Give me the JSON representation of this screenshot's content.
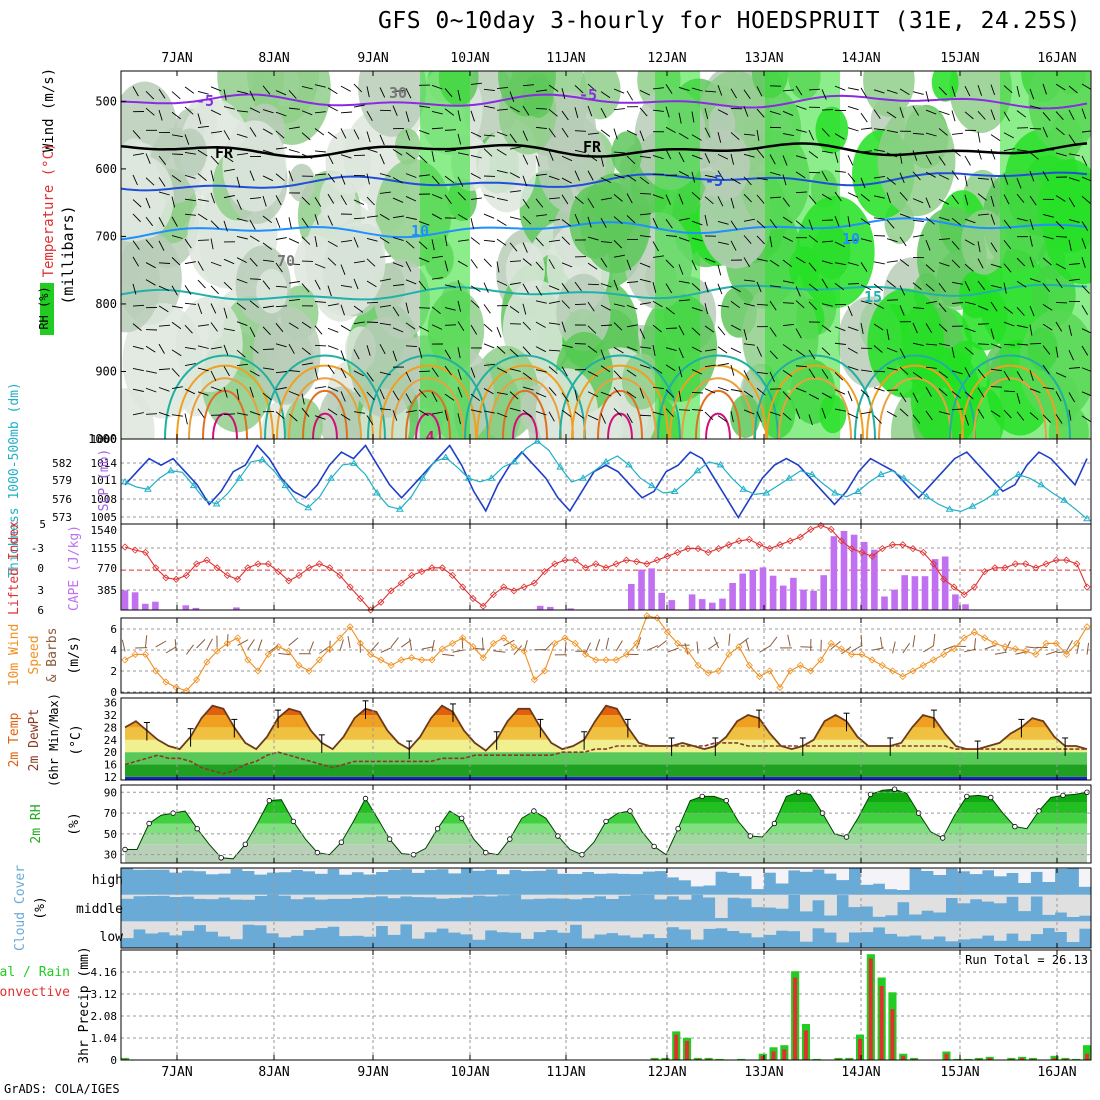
{
  "title": "GFS 0~10day 3-hourly for HOEDSPRUIT (31E, 24.25S)",
  "footer": "GrADS: COLA/IGES",
  "chart_data": [
    {
      "id": "upper-air",
      "type": "contour",
      "xlabels": [
        "7JAN",
        "8JAN",
        "9JAN",
        "10JAN",
        "11JAN",
        "12JAN",
        "13JAN",
        "14JAN",
        "15JAN",
        "16JAN"
      ],
      "ylabels": [
        "500",
        "600",
        "700",
        "800",
        "900",
        "1000"
      ],
      "ylabel": "(millibars)",
      "legend": {
        "rh": "RH (%)",
        "temp": "Temperature (°C)",
        "wind": "Wind (m/s)"
      },
      "contour_labels": [
        "-5",
        "-5",
        "FR",
        "FR",
        "-5",
        "10",
        "10",
        "15",
        "30",
        "70",
        "4"
      ],
      "isotherms": [
        {
          "name": "-5C",
          "color": "#8a2be2",
          "level": 500
        },
        {
          "name": "FR",
          "color": "#000000",
          "level": 572
        },
        {
          "name": "5C",
          "color": "#1f4fd8",
          "level": 625
        },
        {
          "name": "10C",
          "color": "#1e90ff",
          "level": 695
        },
        {
          "name": "15C",
          "color": "#20b2aa",
          "level": 790
        }
      ]
    },
    {
      "id": "thickness-slp",
      "type": "line",
      "ylabel_left": "Thickness 1000-500mb (dm)",
      "ylabel_right": "SLP (mb)",
      "left_ticks": [
        "582",
        "579",
        "576",
        "573"
      ],
      "right_ticks": [
        "1014",
        "1011",
        "1008",
        "1005"
      ],
      "series": [
        {
          "name": "SLP (mb)",
          "color": "#1f3fc8",
          "ylim": [
            1004,
            1017
          ],
          "values": [
            1010,
            1012,
            1014,
            1013,
            1014,
            1012,
            1010,
            1007,
            1009,
            1012,
            1013,
            1016,
            1014,
            1011,
            1009,
            1008,
            1010,
            1013,
            1015,
            1014,
            1016,
            1013,
            1010,
            1008,
            1010,
            1012,
            1014,
            1016,
            1013,
            1009,
            1006,
            1010,
            1013,
            1015,
            1013,
            1011,
            1008,
            1006,
            1009,
            1012,
            1013,
            1012,
            1010,
            1008,
            1009,
            1012,
            1013,
            1015,
            1014,
            1011,
            1008,
            1005,
            1008,
            1011,
            1013,
            1014,
            1013,
            1011,
            1009,
            1007,
            1009,
            1012,
            1014,
            1013,
            1012,
            1010,
            1008,
            1010,
            1012,
            1014,
            1015,
            1013,
            1011,
            1009,
            1010,
            1013,
            1015,
            1014,
            1012,
            1010,
            1014
          ]
        },
        {
          "name": "Thickness (dm)",
          "color": "#20b0c8",
          "ylim": [
            5728,
            5843
          ],
          "values": [
            5785,
            5778,
            5775,
            5790,
            5800,
            5798,
            5780,
            5760,
            5755,
            5770,
            5790,
            5812,
            5815,
            5800,
            5780,
            5758,
            5750,
            5765,
            5790,
            5808,
            5810,
            5795,
            5770,
            5752,
            5748,
            5765,
            5790,
            5812,
            5818,
            5805,
            5790,
            5785,
            5790,
            5805,
            5812,
            5830,
            5840,
            5828,
            5805,
            5785,
            5790,
            5800,
            5812,
            5820,
            5808,
            5790,
            5780,
            5770,
            5772,
            5785,
            5800,
            5812,
            5808,
            5790,
            5775,
            5768,
            5770,
            5780,
            5790,
            5800,
            5795,
            5782,
            5770,
            5765,
            5772,
            5785,
            5795,
            5800,
            5790,
            5778,
            5765,
            5755,
            5748,
            5745,
            5752,
            5760,
            5770,
            5785,
            5795,
            5790,
            5781,
            5770,
            5760,
            5748,
            5735
          ]
        }
      ]
    },
    {
      "id": "lifted-cape",
      "type": "line+bar",
      "ylabel_left": "Lifted Index",
      "ylabel_right": "CAPE (J/kg)",
      "left_ticks": [
        "-3",
        "0",
        "3",
        "6"
      ],
      "right_ticks": [
        "1540",
        "1155",
        "770",
        "385"
      ],
      "lifted_index": {
        "name": "Lifted Index",
        "color": "#e03030",
        "ylim": [
          6,
          -5.2
        ],
        "values": [
          -2.2,
          -1.8,
          -1.5,
          0.5,
          1.8,
          2.0,
          1.5,
          0,
          -0.5,
          0.5,
          1.5,
          2.0,
          0.5,
          0,
          0,
          1.0,
          2.2,
          1.5,
          0.5,
          0,
          0.5,
          1.5,
          3.0,
          4.5,
          6,
          5.0,
          3.5,
          2.5,
          1.5,
          1.0,
          0.5,
          0.5,
          1.5,
          3.0,
          4.5,
          5.5,
          4.0,
          3.0,
          3.5,
          3.0,
          2.5,
          1.0,
          0,
          -0.5,
          -0.5,
          0.5,
          0,
          0.5,
          0,
          -0.5,
          -0.3,
          0,
          -0.5,
          -1.0,
          -1.5,
          -2.0,
          -2.0,
          -1.5,
          -2.0,
          -2.5,
          -3.0,
          -3.2,
          -2.5,
          -2.0,
          -2.5,
          -3.0,
          -3.5,
          -4.5,
          -5.0,
          -4.5,
          -3.0,
          -2.0,
          -1.5,
          -1.0,
          -2.0,
          -2.5,
          -2.5,
          -2.0,
          -1.5,
          0,
          2.0,
          3.0,
          4.0,
          3.0,
          1.0,
          0.5,
          0.5,
          0,
          0,
          0.5,
          0,
          -0.5,
          -0.5,
          0,
          3.0
        ]
      },
      "cape": {
        "name": "CAPE (J/kg)",
        "color": "#c070f0",
        "ylim": [
          0,
          1540
        ],
        "values": [
          380,
          340,
          120,
          160,
          0,
          0,
          90,
          40,
          0,
          0,
          0,
          50,
          0,
          0,
          0,
          0,
          0,
          0,
          0,
          0,
          0,
          0,
          0,
          0,
          0,
          0,
          0,
          0,
          0,
          0,
          0,
          0,
          0,
          0,
          0,
          0,
          0,
          0,
          0,
          0,
          0,
          80,
          60,
          0,
          30,
          0,
          0,
          0,
          0,
          0,
          500,
          780,
          800,
          330,
          190,
          0,
          300,
          210,
          140,
          220,
          520,
          700,
          770,
          820,
          660,
          470,
          620,
          390,
          370,
          670,
          1420,
          1520,
          1450,
          1310,
          1160,
          260,
          390,
          670,
          650,
          650,
          980,
          1030,
          300,
          110,
          0,
          0,
          0,
          0,
          0,
          0,
          0,
          0,
          0,
          0,
          0,
          0
        ]
      }
    },
    {
      "id": "wind10m",
      "type": "line",
      "ylabel": "10m Wind Speed & Barbs (m/s)",
      "ticks": [
        "6",
        "4",
        "2",
        "0"
      ],
      "series": [
        {
          "name": "10m Wind Speed",
          "color": "#f09020",
          "ylim": [
            0,
            6.8
          ],
          "values": [
            3.0,
            3.5,
            3.5,
            2.0,
            1.0,
            0.5,
            0.2,
            1.2,
            2.8,
            3.8,
            4.5,
            5.0,
            3.0,
            2.0,
            3.5,
            4.2,
            3.8,
            2.5,
            2.0,
            3.0,
            4.0,
            5.0,
            6.0,
            4.5,
            3.5,
            3.0,
            2.5,
            3.0,
            3.2,
            3.0,
            3.0,
            4.0,
            4.5,
            5.0,
            4.2,
            3.2,
            4.5,
            5.0,
            4.2,
            3.8,
            1.2,
            2.0,
            4.5,
            5.0,
            4.5,
            3.5,
            3.0,
            3.0,
            3.0,
            3.5,
            4.5,
            7.0,
            6.8,
            5.5,
            4.5,
            3.8,
            2.5,
            1.8,
            2.0,
            3.5,
            4.2,
            2.5,
            1.5,
            2.0,
            0.5,
            2.0,
            2.5,
            2.0,
            3.0,
            4.5,
            4.0,
            3.5,
            3.5,
            3.0,
            2.5,
            2.0,
            1.5,
            2.0,
            2.5,
            3.0,
            3.5,
            4.0,
            5.0,
            5.5,
            5.0,
            4.5,
            4.2,
            4.0,
            3.8,
            3.5,
            4.5,
            4.5,
            3.5,
            4.5,
            6.0
          ]
        }
      ]
    },
    {
      "id": "temp2m",
      "type": "area",
      "ylabel": "2m Temp / 2m DewPt (6hr Min/Max) (°C)",
      "ticks": [
        "36",
        "32",
        "28",
        "24",
        "20",
        "16",
        "12"
      ],
      "ylim": [
        11,
        37.5
      ],
      "series": [
        {
          "name": "2m Temp",
          "color": "#6b3a1a",
          "values": [
            28,
            30,
            27,
            24,
            22,
            21,
            25,
            31,
            35,
            34,
            28,
            23,
            21,
            25,
            31,
            34,
            33,
            27,
            23,
            21,
            25,
            31,
            34,
            33,
            27,
            23,
            21,
            25,
            31,
            35,
            33,
            27,
            23,
            20.5,
            24,
            30,
            34,
            34,
            28,
            23,
            21,
            22,
            24,
            30,
            35,
            34,
            28,
            23,
            22,
            22,
            22,
            23,
            22,
            21,
            22,
            25,
            30,
            32,
            31,
            26,
            22,
            21,
            22,
            24,
            30,
            32,
            30,
            25,
            22,
            22,
            22,
            23,
            28,
            32,
            31,
            26,
            22,
            21,
            21,
            22,
            23,
            26,
            28,
            31,
            30,
            25,
            22,
            22,
            21
          ]
        },
        {
          "name": "2m DewPt",
          "color": "#8a3a2a",
          "values": [
            16,
            17,
            18,
            19,
            18,
            18,
            17,
            15,
            14,
            13,
            14,
            16,
            17,
            19,
            20,
            19,
            18,
            17,
            16,
            15,
            16,
            17,
            17,
            17,
            17,
            17,
            17,
            17,
            17,
            18,
            18,
            18,
            19,
            19,
            19,
            19,
            19,
            19,
            19,
            19,
            20,
            20,
            20,
            21,
            21,
            22,
            22,
            22,
            22,
            22,
            22,
            22,
            22,
            22,
            23,
            23,
            23,
            22,
            22,
            22,
            22,
            22,
            22,
            22,
            22,
            22,
            22,
            22,
            22,
            22,
            22,
            22,
            22,
            22,
            22,
            22,
            21,
            21,
            21,
            21,
            21,
            21,
            21,
            21,
            21,
            21,
            21,
            21,
            21
          ]
        }
      ]
    },
    {
      "id": "rh2m",
      "type": "area",
      "ylabel": "2m RH (%)",
      "ticks": [
        "90",
        "70",
        "50",
        "30"
      ],
      "ylim": [
        22,
        97
      ],
      "series": [
        {
          "name": "2m RH",
          "color": "#00a000",
          "values": [
            35,
            35,
            60,
            68,
            70,
            72,
            55,
            40,
            27,
            26,
            40,
            60,
            82,
            83,
            62,
            45,
            32,
            30,
            42,
            62,
            84,
            65,
            45,
            31,
            30,
            36,
            55,
            72,
            65,
            45,
            32,
            30,
            45,
            65,
            72,
            65,
            48,
            35,
            30,
            42,
            62,
            70,
            72,
            52,
            38,
            30,
            55,
            82,
            86,
            86,
            82,
            62,
            48,
            47,
            60,
            86,
            90,
            88,
            70,
            50,
            47,
            66,
            88,
            92,
            93,
            89,
            70,
            52,
            46,
            68,
            86,
            87,
            85,
            70,
            57,
            55,
            72,
            85,
            87,
            88,
            90
          ]
        }
      ]
    },
    {
      "id": "cloud",
      "type": "heatmap",
      "ylabel": "Cloud Cover (%)",
      "rows": [
        "high",
        "middle",
        "low"
      ],
      "colors": {
        "cloud": "#6aaad6",
        "clear": "#e0e0e0"
      }
    },
    {
      "id": "precip",
      "type": "bar",
      "ylabel": "3hr Precip (mm)",
      "legend": {
        "total": "Total / Rain",
        "convective": "Convective"
      },
      "ticks": [
        "4.16",
        "3.12",
        "2.08",
        "1.04",
        "0"
      ],
      "ylim": [
        0,
        5.2
      ],
      "run_total": "Run Total = 26.13",
      "series": [
        {
          "name": "Total",
          "color": "#22cc22",
          "values": [
            0.1,
            0,
            0,
            0,
            0,
            0,
            0,
            0,
            0,
            0,
            0,
            0,
            0,
            0,
            0,
            0,
            0,
            0,
            0,
            0,
            0,
            0,
            0,
            0,
            0,
            0,
            0,
            0,
            0,
            0,
            0,
            0,
            0,
            0,
            0,
            0,
            0,
            0,
            0,
            0,
            0,
            0,
            0,
            0,
            0,
            0,
            0,
            0,
            0,
            0.1,
            0.1,
            1.35,
            1.05,
            0.1,
            0.1,
            0.05,
            0,
            0.05,
            0,
            0.3,
            0.6,
            0.7,
            4.2,
            1.7,
            0.05,
            0,
            0.1,
            0.1,
            1.2,
            5.0,
            3.9,
            3.2,
            0.3,
            0.1,
            0,
            0,
            0.4,
            0.05,
            0.05,
            0.1,
            0.15,
            0,
            0.1,
            0.15,
            0.1,
            0,
            0.2,
            0.1,
            0.05,
            0.7
          ]
        },
        {
          "name": "Convective",
          "color": "#e03030",
          "values": [
            0.05,
            0,
            0,
            0,
            0,
            0,
            0,
            0,
            0,
            0,
            0,
            0,
            0,
            0,
            0,
            0,
            0,
            0,
            0,
            0,
            0,
            0,
            0,
            0,
            0,
            0,
            0,
            0,
            0,
            0,
            0,
            0,
            0,
            0,
            0,
            0,
            0,
            0,
            0,
            0,
            0,
            0,
            0,
            0,
            0,
            0,
            0,
            0,
            0,
            0.05,
            0.05,
            1.2,
            0.9,
            0.05,
            0.05,
            0,
            0,
            0,
            0,
            0.2,
            0.4,
            0.5,
            3.9,
            1.4,
            0,
            0,
            0.05,
            0.05,
            1.0,
            4.8,
            3.5,
            2.4,
            0.2,
            0.05,
            0,
            0,
            0.3,
            0,
            0,
            0.05,
            0.1,
            0,
            0.05,
            0.1,
            0.05,
            0,
            0.1,
            0.05,
            0,
            0.3
          ]
        }
      ]
    }
  ]
}
